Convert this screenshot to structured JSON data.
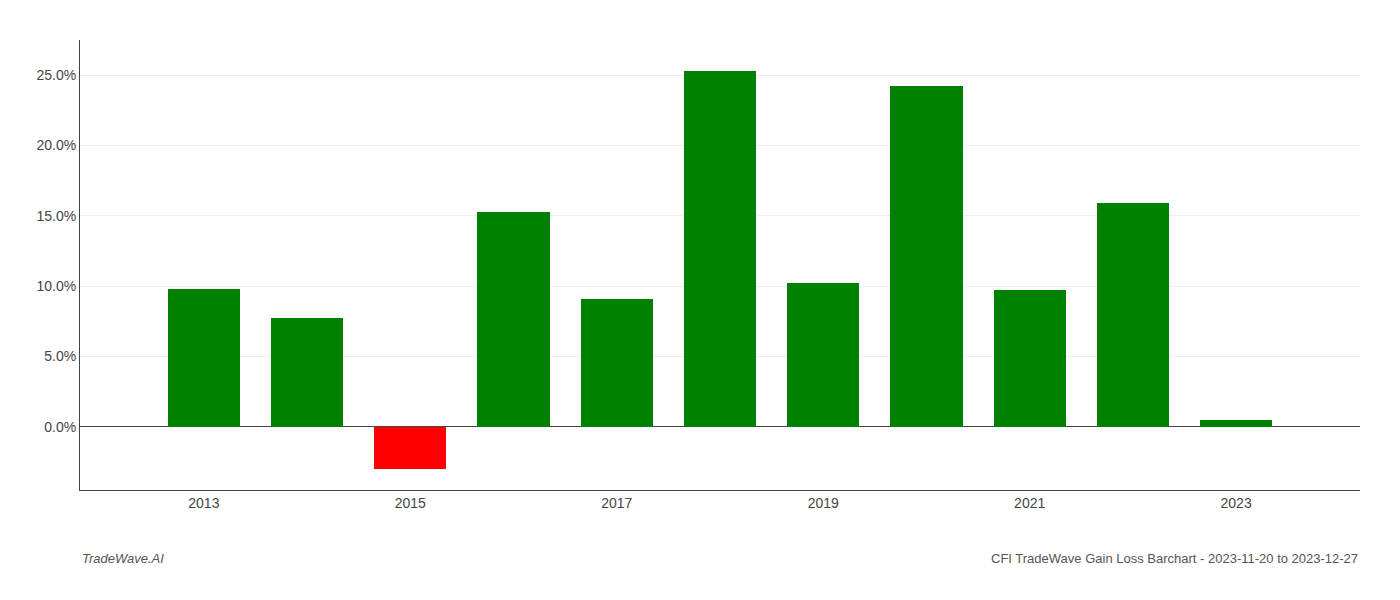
{
  "chart_data": {
    "type": "bar",
    "x": [
      2013,
      2014,
      2015,
      2016,
      2017,
      2018,
      2019,
      2020,
      2021,
      2022,
      2023
    ],
    "values": [
      9.8,
      7.7,
      -3.0,
      15.3,
      9.1,
      25.3,
      10.2,
      24.2,
      9.7,
      15.9,
      0.5
    ],
    "colors": [
      "#008000",
      "#008000",
      "#ff0000",
      "#008000",
      "#008000",
      "#008000",
      "#008000",
      "#008000",
      "#008000",
      "#008000",
      "#008000"
    ],
    "xlim": [
      2011.8,
      2024.2
    ],
    "xticks": [
      2013,
      2015,
      2017,
      2019,
      2021,
      2023
    ],
    "ylim": [
      -4.5,
      27.5
    ],
    "yticks": [
      {
        "value": 0.0,
        "label": "0.0%"
      },
      {
        "value": 5.0,
        "label": "5.0%"
      },
      {
        "value": 10.0,
        "label": "10.0%"
      },
      {
        "value": 15.0,
        "label": "15.0%"
      },
      {
        "value": 20.0,
        "label": "20.0%"
      },
      {
        "value": 25.0,
        "label": "25.0%"
      }
    ],
    "grid": true,
    "annotations": [
      "TradeWave.AI",
      "CFI TradeWave Gain Loss Barchart - 2023-11-20 to 2023-12-27"
    ]
  }
}
